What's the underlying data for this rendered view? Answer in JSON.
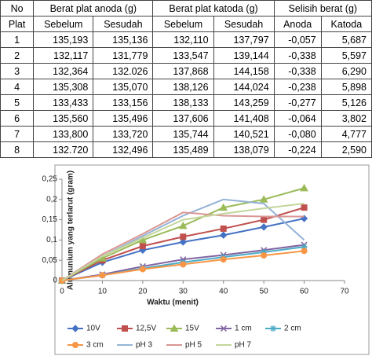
{
  "table": {
    "header": [
      [
        "No",
        "Berat plat anoda (g)",
        "Berat plat katoda (g)",
        "Selisih berat (g)"
      ],
      [
        "Plat",
        "Sebelum",
        "Sesudah",
        "Sebelum",
        "Sesudah",
        "Anoda",
        "Katoda"
      ]
    ],
    "rows": [
      [
        "1",
        "135,193",
        "135,136",
        "132,110",
        "137,797",
        "-0,057",
        "5,687"
      ],
      [
        "2",
        "132,117",
        "131,779",
        "133,547",
        "139,144",
        "-0,338",
        "5,597"
      ],
      [
        "3",
        "132,364",
        "132.026",
        "137,868",
        "144,158",
        "-0,338",
        "6,290"
      ],
      [
        "4",
        "135,308",
        "135,070",
        "138,126",
        "144,024",
        "-0,238",
        "5,898"
      ],
      [
        "5",
        "133,433",
        "133,156",
        "138,133",
        "143,259",
        "-0,277",
        "5,126"
      ],
      [
        "6",
        "135,560",
        "135,496",
        "137,606",
        "141,408",
        "-0,064",
        "3,802"
      ],
      [
        "7",
        "133,800",
        "133,720",
        "135,744",
        "140,521",
        "-0,080",
        "4,777"
      ],
      [
        "8",
        "132.720",
        "132,496",
        "135,489",
        "138,079",
        "-0,224",
        "2,590"
      ]
    ]
  },
  "chart_data": {
    "type": "line",
    "x_label": "Waktu (menit)",
    "y_label": "Alumunium yang terlarut (gram)",
    "x": [
      0,
      10,
      20,
      30,
      40,
      50,
      60
    ],
    "xlim": [
      0,
      70
    ],
    "xticks": [
      0,
      10,
      20,
      30,
      40,
      50,
      60,
      70
    ],
    "ylim": [
      0,
      0.25
    ],
    "yticks": [
      0,
      {
        "value": 0.05,
        "label": "0,05"
      },
      {
        "value": 0.1,
        "label": "0,1"
      },
      {
        "value": 0.15,
        "label": "0,15"
      },
      {
        "value": 0.2,
        "label": "0,2"
      },
      {
        "value": 0.25,
        "label": "0,25"
      }
    ],
    "series": [
      {
        "name": "10V",
        "color": "#4472c4",
        "marker": "diamond",
        "values": [
          0,
          0.045,
          0.075,
          0.095,
          0.112,
          0.132,
          0.153
        ]
      },
      {
        "name": "12,5V",
        "color": "#c0504d",
        "marker": "square",
        "values": [
          0,
          0.05,
          0.085,
          0.108,
          0.128,
          0.15,
          0.18
        ]
      },
      {
        "name": "15V",
        "color": "#9bbb59",
        "marker": "triangle",
        "values": [
          0,
          0.055,
          0.1,
          0.135,
          0.18,
          0.2,
          0.228
        ]
      },
      {
        "name": "1 cm",
        "color": "#8064a2",
        "marker": "x",
        "values": [
          0,
          0.015,
          0.035,
          0.052,
          0.063,
          0.075,
          0.088
        ]
      },
      {
        "name": "2 cm",
        "color": "#4bacc6",
        "marker": "star",
        "values": [
          0,
          0.013,
          0.03,
          0.045,
          0.058,
          0.07,
          0.083
        ]
      },
      {
        "name": "3 cm",
        "color": "#f79646",
        "marker": "circle",
        "values": [
          0,
          0.013,
          0.028,
          0.04,
          0.052,
          0.062,
          0.073
        ]
      },
      {
        "name": "pH 3",
        "color": "#95b3d7",
        "values": [
          0,
          0.06,
          0.11,
          0.16,
          0.2,
          0.19,
          0.1
        ]
      },
      {
        "name": "pH 5",
        "color": "#d99694",
        "values": [
          0,
          0.065,
          0.115,
          0.168,
          0.16,
          0.158,
          0.158
        ]
      },
      {
        "name": "pH 7",
        "color": "#c3d69b",
        "values": [
          0,
          0.06,
          0.105,
          0.15,
          0.165,
          0.178,
          0.19
        ]
      }
    ]
  }
}
